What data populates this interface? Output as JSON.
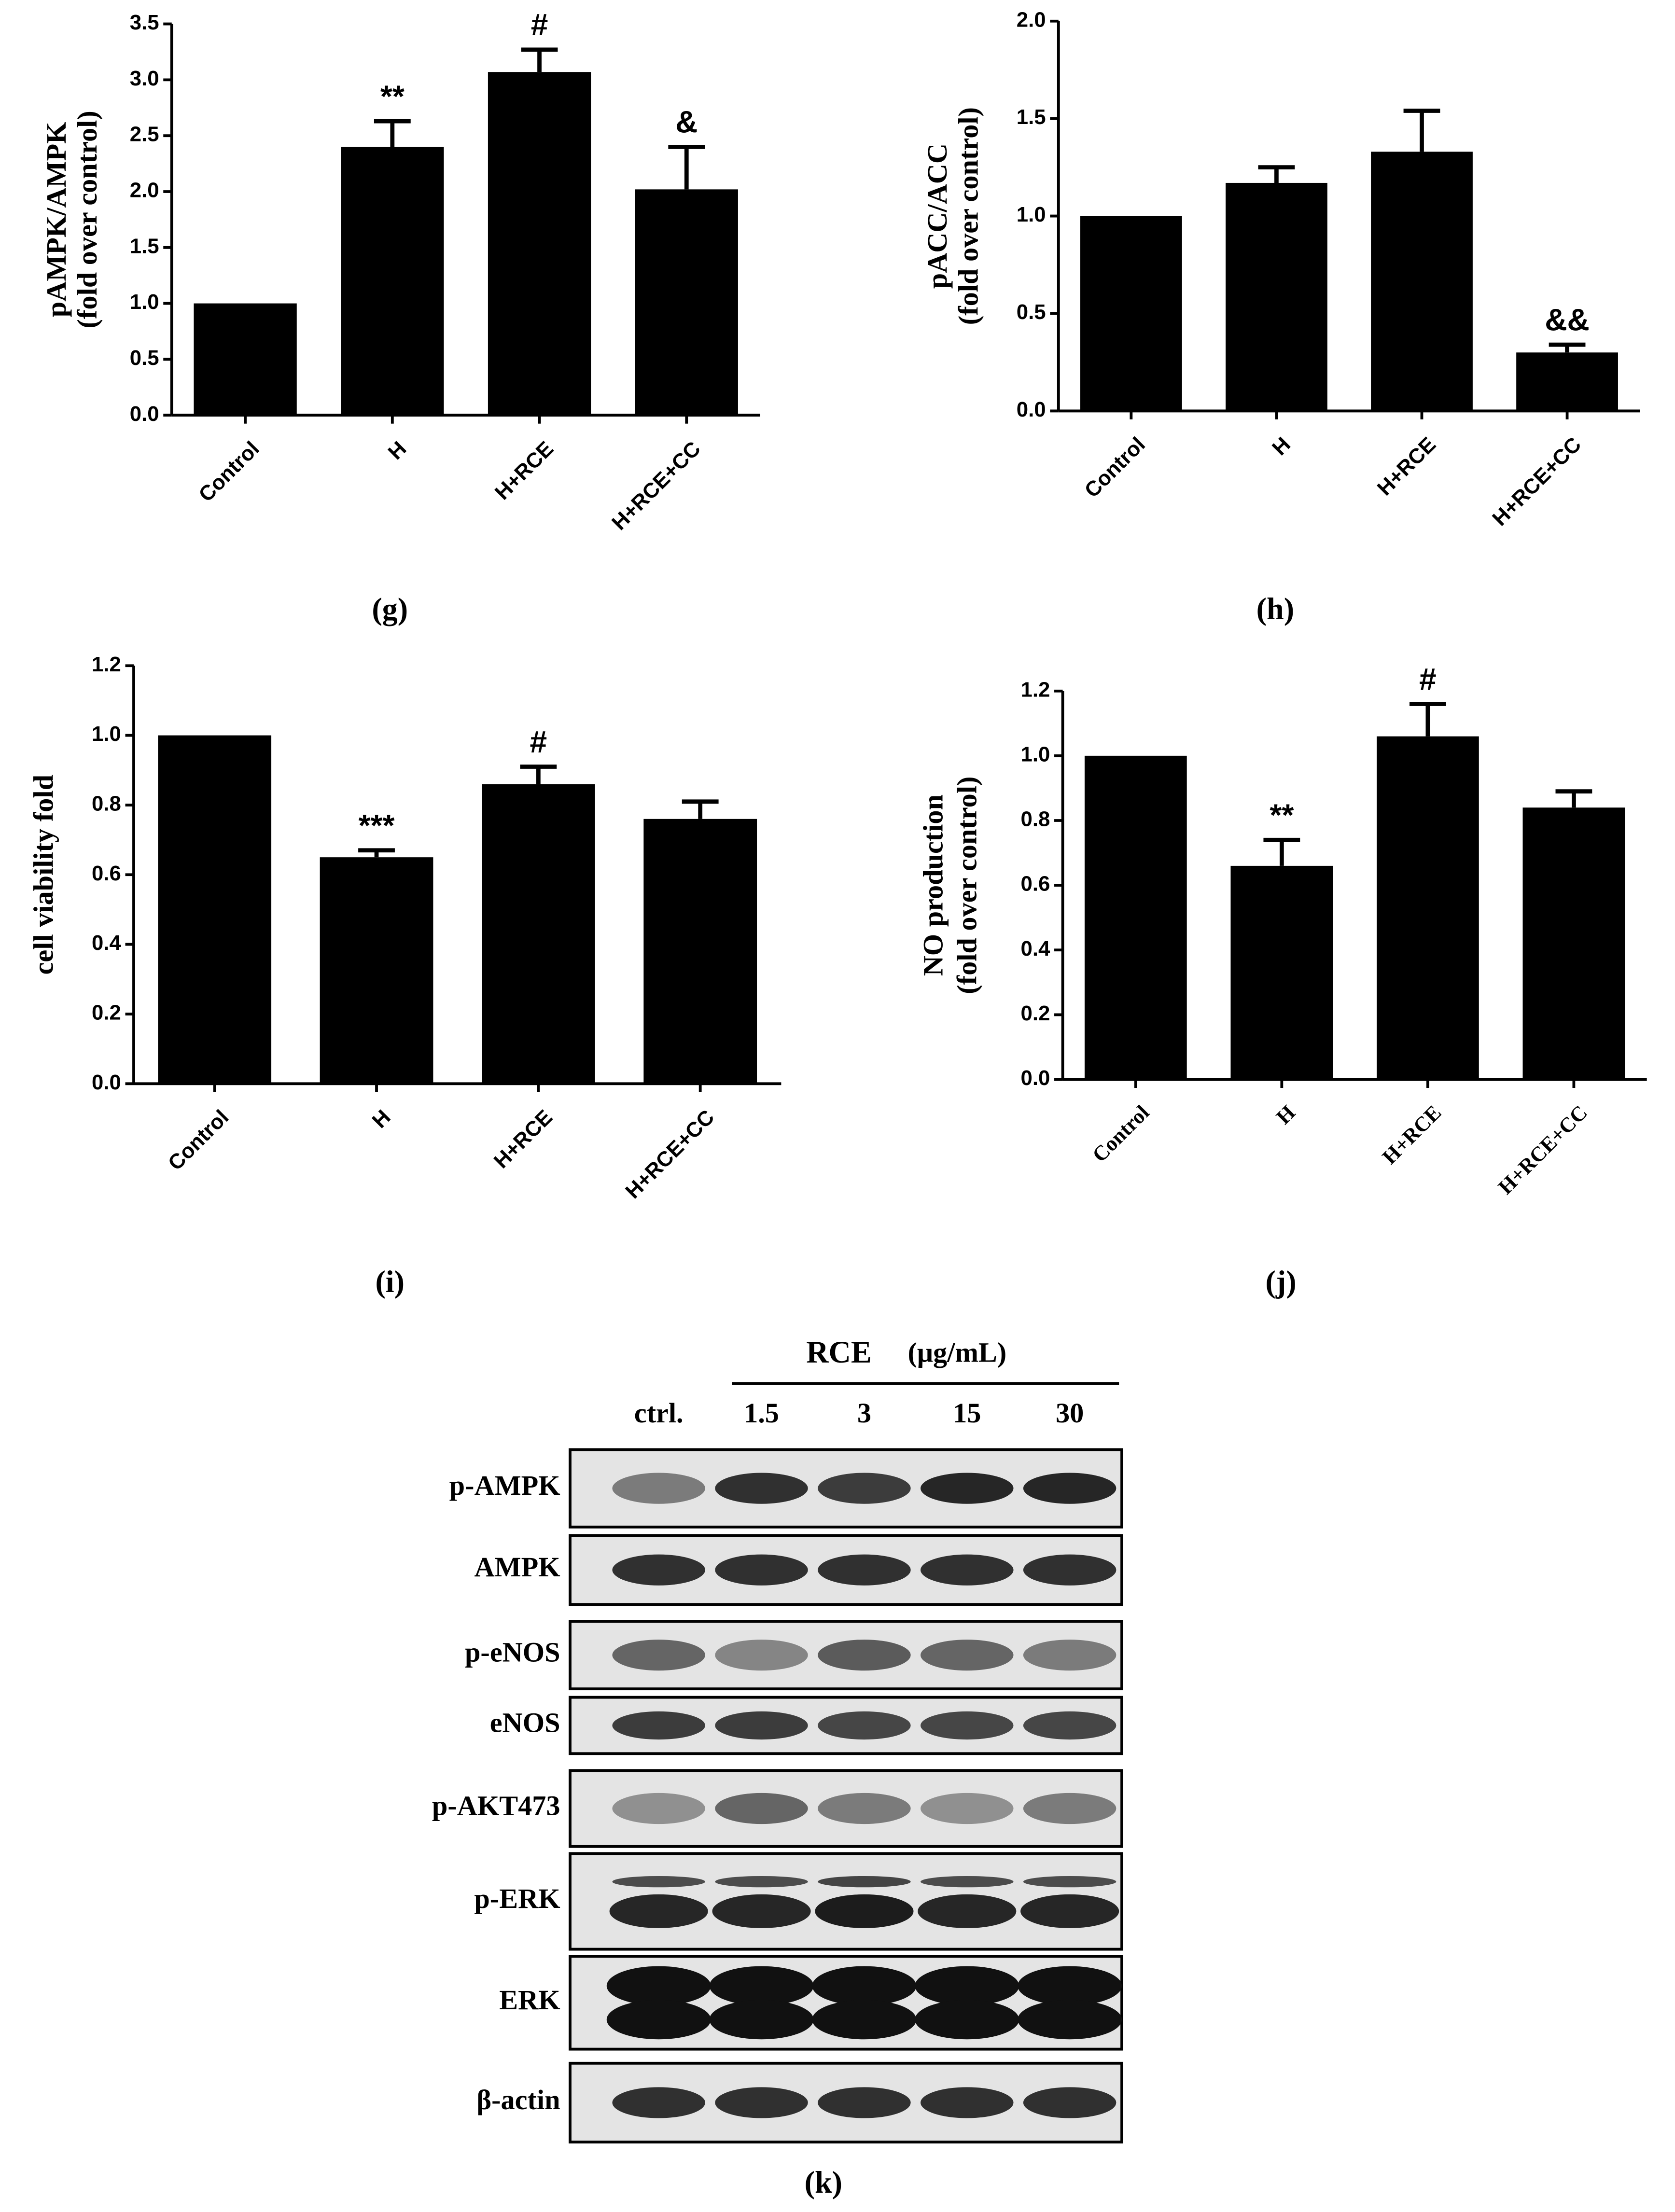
{
  "chart_data": [
    {
      "type": "bar",
      "caption": "(g)",
      "ylabel": [
        "pAMPK/AMPK",
        "(fold over control)"
      ],
      "categories": [
        "Control",
        "H",
        "H+RCE",
        "H+RCE+CC"
      ],
      "values": [
        1.0,
        2.4,
        3.07,
        2.02
      ],
      "errors": [
        0,
        0.23,
        0.2,
        0.38
      ],
      "annotations": [
        null,
        "**",
        "#",
        "&"
      ],
      "color": "#000000",
      "ylim": [
        0,
        3.5
      ],
      "yticks": [
        {
          "value": 0,
          "label": "0.0"
        },
        0.5,
        {
          "value": 1,
          "label": "1.0"
        },
        1.5,
        {
          "value": 2,
          "label": "2.0"
        },
        2.5,
        {
          "value": 3,
          "label": "3.0"
        },
        3.5
      ]
    },
    {
      "type": "bar",
      "caption": "(h)",
      "ylabel": [
        "pACC/ACC",
        "(fold over control)"
      ],
      "categories": [
        "Control",
        "H",
        "H+RCE",
        "H+RCE+CC"
      ],
      "values": [
        1.0,
        1.17,
        1.33,
        0.3
      ],
      "errors": [
        0,
        0.08,
        0.21,
        0.04
      ],
      "annotations": [
        null,
        null,
        null,
        "&&"
      ],
      "color": "#000000",
      "ylim": [
        0,
        2
      ],
      "yticks": [
        {
          "value": 0,
          "label": "0.0"
        },
        0.5,
        {
          "value": 1,
          "label": "1.0"
        },
        1.5,
        {
          "value": 2,
          "label": "2.0"
        }
      ]
    },
    {
      "type": "bar",
      "caption": "(i)",
      "ylabel": [
        "cell viability fold"
      ],
      "categories": [
        "Control",
        "H",
        "H+RCE",
        "H+RCE+CC"
      ],
      "values": [
        1.0,
        0.65,
        0.86,
        0.76
      ],
      "errors": [
        0,
        0.02,
        0.05,
        0.05
      ],
      "annotations": [
        null,
        "***",
        "#",
        null
      ],
      "color": "#000000",
      "ylim": [
        0,
        1.2
      ],
      "yticks": [
        {
          "value": 0,
          "label": "0.0"
        },
        0.2,
        0.4,
        0.6,
        0.8,
        {
          "value": 1,
          "label": "1.0"
        },
        1.2
      ]
    },
    {
      "type": "bar",
      "caption": "(j)",
      "ylabel": [
        "NO production",
        "(fold over control)"
      ],
      "categories": [
        "Control",
        "H",
        "H+RCE",
        "H+RCE+CC"
      ],
      "values": [
        1.0,
        0.66,
        1.06,
        0.84
      ],
      "errors": [
        0,
        0.08,
        0.1,
        0.05
      ],
      "annotations": [
        null,
        "**",
        "#",
        null
      ],
      "color": "#000000",
      "ylim": [
        0,
        1.2
      ],
      "yticks": [
        {
          "value": 0,
          "label": "0.0"
        },
        0.2,
        0.4,
        0.6,
        0.8,
        {
          "value": 1,
          "label": "1.0"
        },
        1.2
      ]
    }
  ],
  "blot": {
    "caption": "(k)",
    "treatment": "RCE",
    "unit": "(μg/mL)",
    "lanes": [
      "ctrl.",
      "1.5",
      "3",
      "15",
      "30"
    ],
    "rows": [
      "p-AMPK",
      "AMPK",
      "p-eNOS",
      "eNOS",
      "p-AKT473",
      "p-ERK",
      "ERK",
      "β-actin"
    ]
  }
}
